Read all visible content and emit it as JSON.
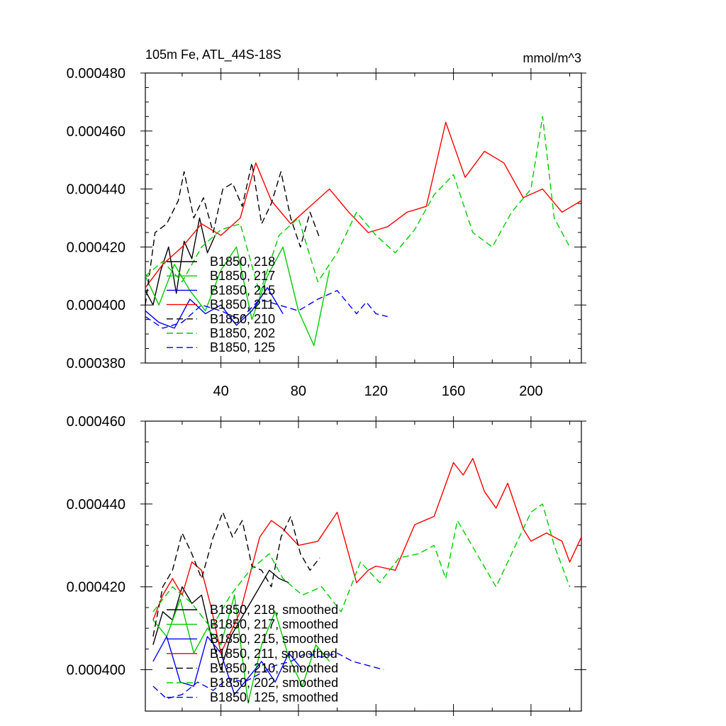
{
  "chart_data": [
    {
      "type": "line",
      "title_left": "105m Fe, ATL_44S-18S",
      "title_right": "mmol/m^3",
      "xlabel": "",
      "ylabel": "",
      "xlim": [
        1,
        226
      ],
      "ylim": [
        0.00038,
        0.00048
      ],
      "xticks": [
        "40",
        "80",
        "120",
        "160",
        "200"
      ],
      "yticks": [
        "0.000380",
        "0.000400",
        "0.000420",
        "0.000440",
        "0.000460",
        "0.000480"
      ],
      "legend_position": "lower-left",
      "series": [
        {
          "name": "B1850, 218",
          "color": "#000000",
          "dash": "solid",
          "x": [
            1,
            5,
            9,
            13,
            17,
            21,
            25,
            29,
            33,
            37
          ],
          "y": [
            0.000405,
            0.0004,
            0.000412,
            0.00042,
            0.000404,
            0.000422,
            0.000416,
            0.00043,
            0.000418,
            0.000424
          ]
        },
        {
          "name": "B1850, 217",
          "color": "#00cc00",
          "dash": "solid",
          "x": [
            1,
            8,
            16,
            24,
            32,
            40,
            48,
            56,
            64,
            72,
            80,
            88,
            96
          ],
          "y": [
            0.00041,
            0.0004,
            0.000414,
            0.000405,
            0.000398,
            0.000412,
            0.00042,
            0.000395,
            0.00041,
            0.00042,
            0.000398,
            0.000386,
            0.000412
          ]
        },
        {
          "name": "B1850, 215",
          "color": "#0000ff",
          "dash": "solid",
          "x": [
            1,
            8,
            16,
            24,
            32,
            40,
            48,
            56,
            64,
            72
          ],
          "y": [
            0.000398,
            0.000394,
            0.000392,
            0.000402,
            0.000397,
            0.0004,
            0.000393,
            0.000398,
            0.000406,
            0.000397
          ]
        },
        {
          "name": "B1850, 211",
          "color": "#ff0000",
          "dash": "solid",
          "x": [
            1,
            10,
            20,
            30,
            40,
            50,
            58,
            66,
            76,
            86,
            96,
            106,
            116,
            126,
            136,
            146,
            156,
            166,
            176,
            186,
            196,
            206,
            216,
            226
          ],
          "y": [
            0.000406,
            0.000414,
            0.00042,
            0.000428,
            0.000424,
            0.00043,
            0.000449,
            0.000436,
            0.000428,
            0.000434,
            0.00044,
            0.000432,
            0.000425,
            0.000427,
            0.000432,
            0.000434,
            0.000463,
            0.000444,
            0.000453,
            0.000449,
            0.000437,
            0.00044,
            0.000432,
            0.000436
          ]
        },
        {
          "name": "B1850, 210",
          "color": "#000000",
          "dash": "dashed",
          "x": [
            1,
            6,
            12,
            18,
            21,
            26,
            31,
            36,
            41,
            46,
            51,
            56,
            61,
            66,
            71,
            76,
            81,
            86,
            91
          ],
          "y": [
            0.0004,
            0.000425,
            0.000428,
            0.000436,
            0.000446,
            0.00043,
            0.000437,
            0.000425,
            0.00044,
            0.000442,
            0.000434,
            0.000449,
            0.000428,
            0.000435,
            0.000446,
            0.00043,
            0.00042,
            0.000432,
            0.000423
          ]
        },
        {
          "name": "B1850, 202",
          "color": "#00cc00",
          "dash": "dashed",
          "x": [
            1,
            10,
            20,
            30,
            40,
            50,
            60,
            70,
            80,
            90,
            100,
            110,
            120,
            130,
            140,
            150,
            160,
            170,
            180,
            190,
            200,
            206,
            212,
            220
          ],
          "y": [
            0.00041,
            0.000415,
            0.000408,
            0.00042,
            0.000426,
            0.000428,
            0.000404,
            0.000424,
            0.00043,
            0.000408,
            0.000418,
            0.000432,
            0.000424,
            0.000418,
            0.000426,
            0.000438,
            0.000445,
            0.000425,
            0.00042,
            0.000432,
            0.00044,
            0.000465,
            0.00043,
            0.00042
          ]
        },
        {
          "name": "B1850, 125",
          "color": "#0000ff",
          "dash": "dashed",
          "x": [
            1,
            10,
            20,
            30,
            40,
            50,
            60,
            70,
            80,
            90,
            100,
            110,
            115,
            120,
            126
          ],
          "y": [
            0.000396,
            0.000392,
            0.000394,
            0.0004,
            0.000398,
            0.000395,
            0.000402,
            0.0004,
            0.000398,
            0.000402,
            0.000405,
            0.000397,
            0.000401,
            0.000397,
            0.000396
          ]
        }
      ]
    },
    {
      "type": "line",
      "title_left": "",
      "title_right": "",
      "xlabel": "",
      "ylabel": "",
      "xlim": [
        1,
        226
      ],
      "ylim": [
        0.00039,
        0.00046
      ],
      "xticks": [],
      "yticks": [
        "0.000400",
        "0.000420",
        "0.000440",
        "0.000460"
      ],
      "legend_position": "lower-left",
      "series": [
        {
          "name": "B1850, 218, smoothed",
          "color": "#000000",
          "dash": "solid",
          "x": [
            5,
            10,
            15,
            20,
            25,
            30,
            35,
            40,
            45,
            50,
            55,
            60,
            65,
            70,
            75
          ],
          "y": [
            0.000406,
            0.000414,
            0.000412,
            0.00042,
            0.000416,
            0.000418,
            0.000408,
            0.0004,
            0.000408,
            0.000412,
            0.000416,
            0.00042,
            0.000424,
            0.000422,
            0.000421
          ]
        },
        {
          "name": "B1850, 217, smoothed",
          "color": "#00cc00",
          "dash": "solid",
          "x": [
            5,
            12,
            19,
            26,
            33,
            40,
            47,
            54,
            61,
            68,
            75,
            82,
            89,
            96
          ],
          "y": [
            0.000412,
            0.000408,
            0.000417,
            0.000404,
            0.00041,
            0.000406,
            0.000418,
            0.000392,
            0.000406,
            0.000414,
            0.000403,
            0.000396,
            0.000406,
            0.000402
          ]
        },
        {
          "name": "B1850, 215, smoothed",
          "color": "#0000ff",
          "dash": "solid",
          "x": [
            5,
            12,
            19,
            26,
            33,
            40,
            47,
            54,
            61,
            68,
            75,
            82
          ],
          "y": [
            0.000402,
            0.000408,
            0.000397,
            0.000396,
            0.000408,
            0.000404,
            0.000394,
            0.000398,
            0.000402,
            0.000397,
            0.000404,
            0.0004
          ]
        },
        {
          "name": "B1850, 211, smoothed",
          "color": "#ff0000",
          "dash": "solid",
          "x": [
            5,
            10,
            15,
            20,
            25,
            30,
            35,
            40,
            50,
            60,
            66,
            72,
            80,
            90,
            100,
            110,
            116,
            120,
            130,
            140,
            145,
            150,
            160,
            165,
            170,
            176,
            182,
            188,
            196,
            200,
            208,
            216,
            220,
            226
          ],
          "y": [
            0.000412,
            0.000418,
            0.000422,
            0.000418,
            0.000426,
            0.000424,
            0.000415,
            0.000404,
            0.000414,
            0.000432,
            0.000436,
            0.000434,
            0.00043,
            0.000431,
            0.000438,
            0.000421,
            0.000424,
            0.000425,
            0.000424,
            0.000435,
            0.000436,
            0.000437,
            0.00045,
            0.000447,
            0.000451,
            0.000443,
            0.000439,
            0.000445,
            0.000434,
            0.000431,
            0.000433,
            0.000431,
            0.000426,
            0.000432
          ]
        },
        {
          "name": "B1850, 210, smoothed",
          "color": "#000000",
          "dash": "dashed",
          "x": [
            5,
            10,
            15,
            20,
            25,
            30,
            36,
            41,
            46,
            51,
            56,
            61,
            66,
            71,
            76,
            81,
            86,
            91
          ],
          "y": [
            0.000408,
            0.00042,
            0.000424,
            0.000433,
            0.000428,
            0.000422,
            0.000432,
            0.000438,
            0.000432,
            0.000436,
            0.000425,
            0.000424,
            0.00042,
            0.000432,
            0.000437,
            0.000428,
            0.000424,
            0.000427
          ]
        },
        {
          "name": "B1850, 202, smoothed",
          "color": "#00cc00",
          "dash": "dashed",
          "x": [
            5,
            15,
            25,
            35,
            45,
            55,
            65,
            72,
            82,
            92,
            102,
            112,
            122,
            132,
            142,
            150,
            156,
            162,
            172,
            182,
            190,
            200,
            206,
            212,
            220
          ],
          "y": [
            0.000414,
            0.00042,
            0.000416,
            0.00041,
            0.000418,
            0.000424,
            0.000428,
            0.000422,
            0.000418,
            0.00042,
            0.000414,
            0.000426,
            0.000421,
            0.000427,
            0.000428,
            0.00043,
            0.000422,
            0.000436,
            0.000428,
            0.00042,
            0.000428,
            0.000438,
            0.00044,
            0.00043,
            0.00042
          ]
        },
        {
          "name": "B1850, 125, smoothed",
          "color": "#0000ff",
          "dash": "dashed",
          "x": [
            5,
            12,
            20,
            28,
            36,
            44,
            52,
            60,
            68,
            76,
            84,
            92,
            100,
            108,
            116,
            124
          ],
          "y": [
            0.000396,
            0.000393,
            0.000394,
            0.000397,
            0.000395,
            0.000398,
            0.000397,
            0.000399,
            0.000401,
            0.000402,
            0.000404,
            0.000403,
            0.000404,
            0.000402,
            0.000401,
            0.0004
          ]
        }
      ]
    }
  ]
}
